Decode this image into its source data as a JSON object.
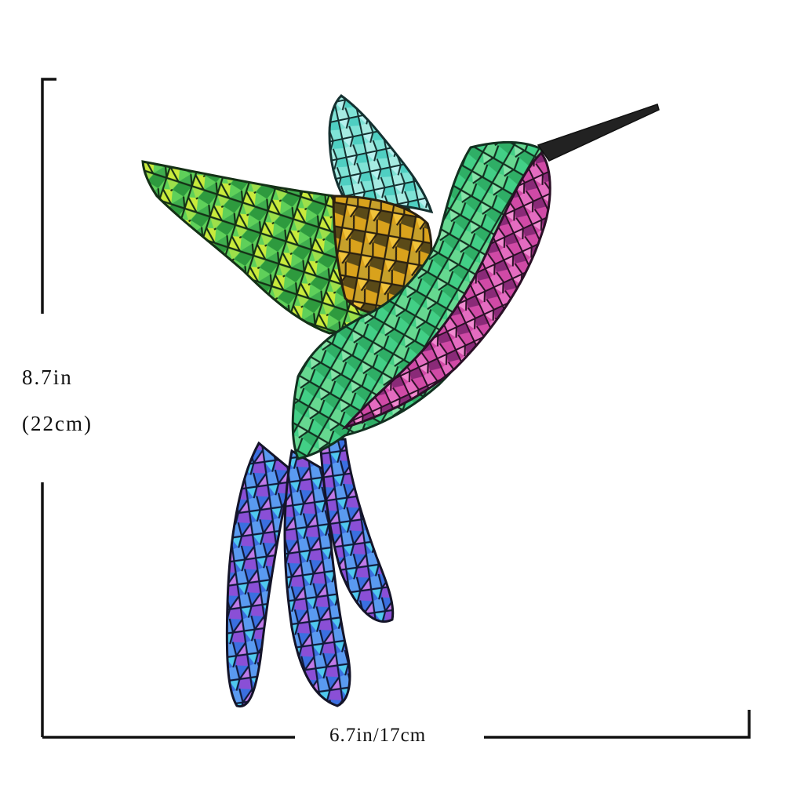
{
  "dimensions": {
    "height_inches": "8.7in",
    "height_cm": "(22cm)",
    "width_label": "6.7in/17cm"
  },
  "product": {
    "subject": "hummingbird",
    "style": "mosaic"
  },
  "colors": {
    "background": "#ffffff",
    "dimension_lines": "#111111",
    "wing_green": "#6fd64a",
    "wing_yellow": "#d6ec3a",
    "upper_wing_cyan": "#7fe0d8",
    "shoulder_amber": "#d9a21c",
    "body_green": "#3fcf7a",
    "throat_magenta": "#d23fa0",
    "tail_blue": "#3b6fe0",
    "tail_purple": "#8a4fd6",
    "tail_cyan": "#4fc8ee",
    "grout": "#1a2a1a",
    "beak": "#222222"
  }
}
